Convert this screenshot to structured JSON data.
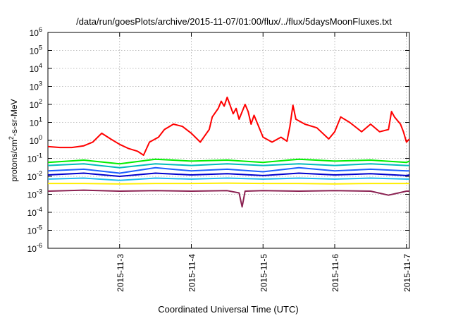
{
  "chart_data": {
    "type": "line",
    "title": "/data/run/goesPlots/archive/2015-11-07/01:00/flux/../flux/5daysMoonFluxes.txt",
    "xlabel": "Coordinated Universal Time (UTC)",
    "ylabel": {
      "prefix": "protons/cm",
      "sup": "2",
      "suffix": "-s-sr-MeV"
    },
    "y_scale": "log",
    "ylim": [
      1e-06,
      1000000.0
    ],
    "y_ticks": [
      {
        "value": 1e-06,
        "base": "10",
        "exp": "-6"
      },
      {
        "value": 1e-05,
        "base": "10",
        "exp": "-5"
      },
      {
        "value": 0.0001,
        "base": "10",
        "exp": "-4"
      },
      {
        "value": 0.001,
        "base": "10",
        "exp": "-3"
      },
      {
        "value": 0.01,
        "base": "10",
        "exp": "-2"
      },
      {
        "value": 0.1,
        "base": "10",
        "exp": "-1"
      },
      {
        "value": 1,
        "base": "10",
        "exp": "0"
      },
      {
        "value": 10.0,
        "base": "10",
        "exp": "1"
      },
      {
        "value": 100.0,
        "base": "10",
        "exp": "2"
      },
      {
        "value": 1000.0,
        "base": "10",
        "exp": "3"
      },
      {
        "value": 10000.0,
        "base": "10",
        "exp": "4"
      },
      {
        "value": 100000.0,
        "base": "10",
        "exp": "5"
      },
      {
        "value": 1000000.0,
        "base": "10",
        "exp": "6"
      }
    ],
    "xlim": [
      "2015-11-02 00:00",
      "2015-11-07 01:00"
    ],
    "x_ticks": [
      {
        "value": "2015-11-03 00:00",
        "label": "2015-11-3"
      },
      {
        "value": "2015-11-04 00:00",
        "label": "2015-11-4"
      },
      {
        "value": "2015-11-05 00:00",
        "label": "2015-11-5"
      },
      {
        "value": "2015-11-06 00:00",
        "label": "2015-11-6"
      },
      {
        "value": "2015-11-07 00:00",
        "label": "2015-11-7"
      }
    ],
    "grid": true,
    "legend": "none",
    "series": [
      {
        "color": "#ff0000",
        "x": [
          "2015-11-02 00:00",
          "2015-11-02 04:00",
          "2015-11-02 08:00",
          "2015-11-02 12:00",
          "2015-11-02 15:00",
          "2015-11-02 18:00",
          "2015-11-02 21:00",
          "2015-11-03 00:00",
          "2015-11-03 03:00",
          "2015-11-03 06:00",
          "2015-11-03 08:00",
          "2015-11-03 10:00",
          "2015-11-03 13:00",
          "2015-11-03 15:00",
          "2015-11-03 18:00",
          "2015-11-03 21:00",
          "2015-11-04 00:00",
          "2015-11-04 03:00",
          "2015-11-04 06:00",
          "2015-11-04 07:00",
          "2015-11-04 09:00",
          "2015-11-04 10:00",
          "2015-11-04 11:00",
          "2015-11-04 12:00",
          "2015-11-04 14:00",
          "2015-11-04 15:00",
          "2015-11-04 16:00",
          "2015-11-04 18:00",
          "2015-11-04 19:00",
          "2015-11-04 20:00",
          "2015-11-04 21:00",
          "2015-11-05 00:00",
          "2015-11-05 03:00",
          "2015-11-05 06:00",
          "2015-11-05 08:00",
          "2015-11-05 09:00",
          "2015-11-05 10:00",
          "2015-11-05 11:00",
          "2015-11-05 14:00",
          "2015-11-05 18:00",
          "2015-11-05 22:00",
          "2015-11-06 00:00",
          "2015-11-06 02:00",
          "2015-11-06 05:00",
          "2015-11-06 09:00",
          "2015-11-06 12:00",
          "2015-11-06 15:00",
          "2015-11-06 18:00",
          "2015-11-06 19:00",
          "2015-11-06 20:00",
          "2015-11-06 22:00",
          "2015-11-06 23:00",
          "2015-11-07 00:00",
          "2015-11-07 01:00"
        ],
        "y": [
          0.45,
          0.4,
          0.4,
          0.5,
          0.8,
          2.5,
          1.2,
          0.6,
          0.35,
          0.25,
          0.15,
          0.8,
          1.5,
          4,
          8,
          6,
          2.5,
          0.8,
          4,
          20,
          60,
          150,
          80,
          250,
          30,
          60,
          15,
          100,
          40,
          8,
          25,
          1.5,
          0.8,
          1.5,
          0.9,
          6,
          90,
          15,
          8,
          5,
          1.2,
          3,
          20,
          10,
          3,
          8,
          3,
          4,
          40,
          20,
          8,
          3,
          0.8,
          1.2
        ]
      },
      {
        "color": "#00ee00",
        "x": [
          "2015-11-02 00:00",
          "2015-11-02 12:00",
          "2015-11-03 00:00",
          "2015-11-03 12:00",
          "2015-11-04 00:00",
          "2015-11-04 12:00",
          "2015-11-05 00:00",
          "2015-11-05 12:00",
          "2015-11-06 00:00",
          "2015-11-06 12:00",
          "2015-11-07 00:00",
          "2015-11-07 01:00"
        ],
        "y": [
          0.06,
          0.08,
          0.05,
          0.09,
          0.07,
          0.08,
          0.06,
          0.09,
          0.07,
          0.08,
          0.06,
          0.07
        ]
      },
      {
        "color": "#00bbbb",
        "x": [
          "2015-11-02 00:00",
          "2015-11-02 12:00",
          "2015-11-03 00:00",
          "2015-11-03 12:00",
          "2015-11-04 00:00",
          "2015-11-04 12:00",
          "2015-11-05 00:00",
          "2015-11-05 12:00",
          "2015-11-06 00:00",
          "2015-11-06 12:00",
          "2015-11-07 00:00",
          "2015-11-07 01:00"
        ],
        "y": [
          0.04,
          0.05,
          0.03,
          0.05,
          0.04,
          0.05,
          0.04,
          0.05,
          0.04,
          0.05,
          0.04,
          0.04
        ]
      },
      {
        "color": "#1e5fff",
        "x": [
          "2015-11-02 00:00",
          "2015-11-02 12:00",
          "2015-11-03 00:00",
          "2015-11-03 12:00",
          "2015-11-04 00:00",
          "2015-11-04 12:00",
          "2015-11-05 00:00",
          "2015-11-05 12:00",
          "2015-11-06 00:00",
          "2015-11-06 12:00",
          "2015-11-07 00:00",
          "2015-11-07 01:00"
        ],
        "y": [
          0.02,
          0.025,
          0.015,
          0.03,
          0.02,
          0.025,
          0.018,
          0.03,
          0.02,
          0.025,
          0.02,
          0.02
        ]
      },
      {
        "color": "#0000cc",
        "x": [
          "2015-11-02 00:00",
          "2015-11-02 12:00",
          "2015-11-03 00:00",
          "2015-11-03 12:00",
          "2015-11-04 00:00",
          "2015-11-04 12:00",
          "2015-11-05 00:00",
          "2015-11-05 12:00",
          "2015-11-06 00:00",
          "2015-11-06 12:00",
          "2015-11-07 00:00",
          "2015-11-07 01:00"
        ],
        "y": [
          0.012,
          0.015,
          0.01,
          0.015,
          0.012,
          0.014,
          0.011,
          0.015,
          0.012,
          0.014,
          0.011,
          0.012
        ]
      },
      {
        "color": "#22bbee",
        "x": [
          "2015-11-02 00:00",
          "2015-11-02 12:00",
          "2015-11-03 00:00",
          "2015-11-03 12:00",
          "2015-11-04 00:00",
          "2015-11-04 12:00",
          "2015-11-05 00:00",
          "2015-11-05 12:00",
          "2015-11-06 00:00",
          "2015-11-06 12:00",
          "2015-11-07 00:00",
          "2015-11-07 01:00"
        ],
        "y": [
          0.007,
          0.008,
          0.006,
          0.008,
          0.007,
          0.008,
          0.007,
          0.008,
          0.007,
          0.008,
          0.007,
          0.007
        ]
      },
      {
        "color": "#ffee00",
        "x": [
          "2015-11-02 00:00",
          "2015-11-02 12:00",
          "2015-11-03 00:00",
          "2015-11-03 12:00",
          "2015-11-04 00:00",
          "2015-11-04 12:00",
          "2015-11-05 00:00",
          "2015-11-05 12:00",
          "2015-11-06 00:00",
          "2015-11-06 12:00",
          "2015-11-07 00:00",
          "2015-11-07 01:00"
        ],
        "y": [
          0.004,
          0.004,
          0.0038,
          0.004,
          0.004,
          0.0042,
          0.004,
          0.004,
          0.0038,
          0.004,
          0.004,
          0.004
        ]
      },
      {
        "color": "#8b2252",
        "x": [
          "2015-11-02 00:00",
          "2015-11-02 12:00",
          "2015-11-03 00:00",
          "2015-11-03 12:00",
          "2015-11-04 00:00",
          "2015-11-04 12:00",
          "2015-11-04 16:00",
          "2015-11-04 17:00",
          "2015-11-04 18:00",
          "2015-11-05 00:00",
          "2015-11-05 12:00",
          "2015-11-06 00:00",
          "2015-11-06 12:00",
          "2015-11-06 18:00",
          "2015-11-07 00:00",
          "2015-11-07 01:00"
        ],
        "y": [
          0.0015,
          0.0017,
          0.0015,
          0.0016,
          0.0015,
          0.0016,
          0.0012,
          0.0002,
          0.0015,
          0.0016,
          0.0015,
          0.0016,
          0.0015,
          0.0009,
          0.0015,
          0.0015
        ]
      }
    ]
  }
}
